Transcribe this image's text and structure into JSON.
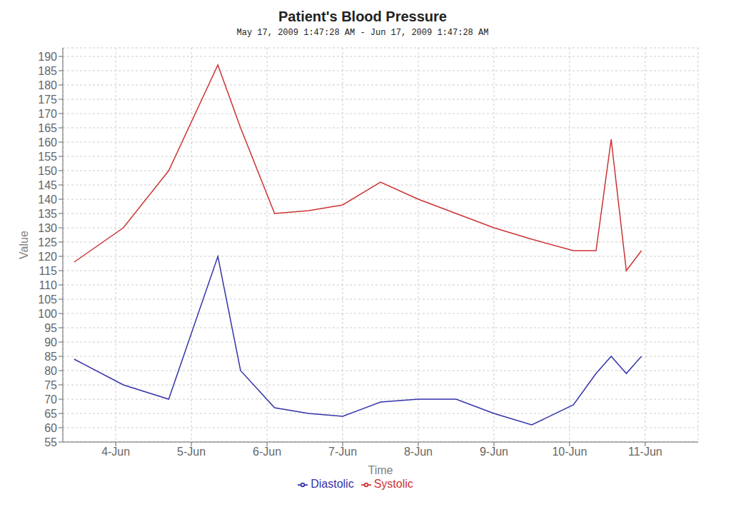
{
  "chart_data": {
    "type": "line",
    "title": "Patient's Blood Pressure",
    "subtitle": "May 17, 2009 1:47:28 AM - Jun 17, 2009 1:47:28 AM",
    "xlabel": "Time",
    "ylabel": "Value",
    "xlim": [
      0.3,
      8.7
    ],
    "xticks": [
      {
        "value": 1,
        "label": "4-Jun"
      },
      {
        "value": 2,
        "label": "5-Jun"
      },
      {
        "value": 3,
        "label": "6-Jun"
      },
      {
        "value": 4,
        "label": "7-Jun"
      },
      {
        "value": 5,
        "label": "8-Jun"
      },
      {
        "value": 6,
        "label": "9-Jun"
      },
      {
        "value": 7,
        "label": "10-Jun"
      },
      {
        "value": 8,
        "label": "11-Jun"
      }
    ],
    "ylim": [
      55,
      193
    ],
    "yticks": [
      55,
      60,
      65,
      70,
      75,
      80,
      85,
      90,
      95,
      100,
      105,
      110,
      115,
      120,
      125,
      130,
      135,
      140,
      145,
      150,
      155,
      160,
      165,
      170,
      175,
      180,
      185,
      190
    ],
    "grid": true,
    "legend": "bottom",
    "x": [
      0.45,
      1.1,
      1.7,
      2.35,
      2.65,
      3.1,
      3.55,
      4.0,
      4.5,
      5.0,
      5.5,
      6.0,
      6.5,
      7.05,
      7.35,
      7.55,
      7.75,
      7.95
    ],
    "series": [
      {
        "name": "Systolic",
        "color": "#cc3333",
        "values": [
          118,
          130,
          150,
          187,
          165,
          135,
          136,
          138,
          146,
          140,
          135,
          130,
          126,
          122,
          122,
          161,
          115,
          122
        ]
      },
      {
        "name": "Diastolic",
        "color": "#3333aa",
        "values": [
          84,
          75,
          70,
          120,
          80,
          67,
          65,
          64,
          69,
          70,
          70,
          65,
          61,
          68,
          79,
          85,
          79,
          85
        ]
      }
    ]
  }
}
